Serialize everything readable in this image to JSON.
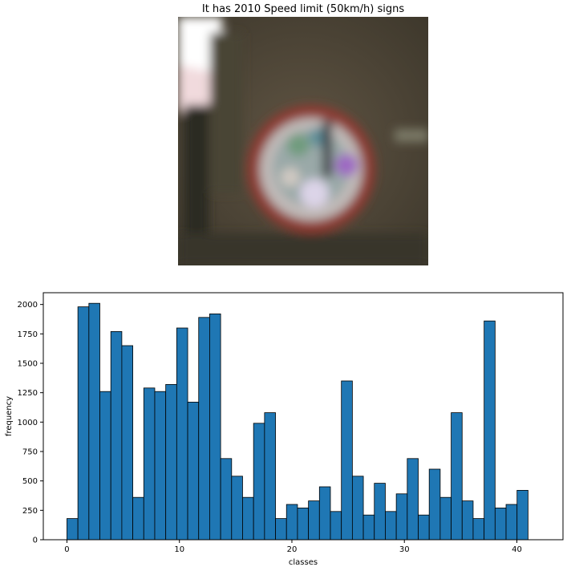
{
  "image_panel": {
    "title": "It has 2010 Speed limit (50km/h) signs"
  },
  "chart_data": {
    "type": "bar",
    "xlabel": "classes",
    "ylabel": "frequency",
    "xlim": [
      -2.1,
      44.1
    ],
    "ylim": [
      0,
      2100
    ],
    "x_ticks": [
      0,
      10,
      20,
      30,
      40
    ],
    "y_ticks": [
      0,
      250,
      500,
      750,
      1000,
      1250,
      1500,
      1750,
      2000
    ],
    "bin_width": 0.976,
    "bin_start": 0,
    "values": [
      180,
      1980,
      2010,
      1260,
      1770,
      1650,
      360,
      1290,
      1260,
      1320,
      1800,
      1170,
      1890,
      1920,
      690,
      540,
      360,
      990,
      1080,
      180,
      300,
      270,
      330,
      450,
      240,
      1350,
      540,
      210,
      480,
      240,
      390,
      690,
      210,
      600,
      360,
      1080,
      330,
      180,
      1860,
      270,
      300,
      420
    ],
    "bar_color": "#1f77b4",
    "edge_color": "#000000"
  }
}
